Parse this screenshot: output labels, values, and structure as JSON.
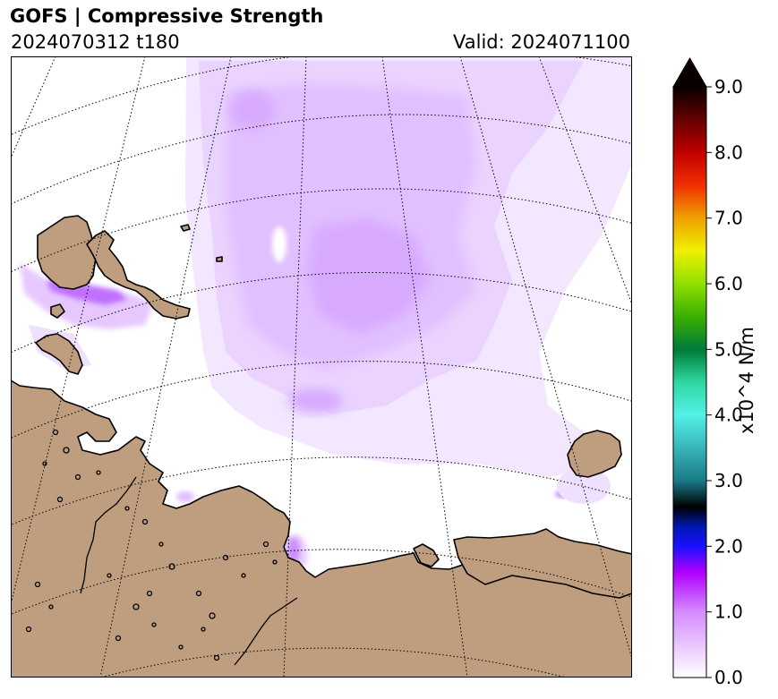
{
  "header": {
    "title": "GOFS  |  Compressive Strength",
    "run": "2024070312 t180",
    "valid": "Valid: 2024071100"
  },
  "colorbar": {
    "min": 0.0,
    "max": 9.0,
    "extend": "max",
    "unit_label": "x10^4 N/m",
    "ticks": [
      "0.0",
      "1.0",
      "2.0",
      "3.0",
      "4.0",
      "5.0",
      "6.0",
      "7.0",
      "8.0",
      "9.0"
    ],
    "tick_values": [
      0,
      1,
      2,
      3,
      4,
      5,
      6,
      7,
      8,
      9
    ],
    "color_stops": [
      {
        "v": 0.0,
        "c": "#ffffff"
      },
      {
        "v": 1.0,
        "c": "#d48cff"
      },
      {
        "v": 1.6,
        "c": "#b000ff"
      },
      {
        "v": 2.0,
        "c": "#1a10ff"
      },
      {
        "v": 2.3,
        "c": "#0018b0"
      },
      {
        "v": 2.6,
        "c": "#000000"
      },
      {
        "v": 3.0,
        "c": "#1a7a88"
      },
      {
        "v": 4.0,
        "c": "#55f0e8"
      },
      {
        "v": 4.5,
        "c": "#2ed8a0"
      },
      {
        "v": 5.0,
        "c": "#007a3a"
      },
      {
        "v": 5.5,
        "c": "#3ab000"
      },
      {
        "v": 6.0,
        "c": "#90e000"
      },
      {
        "v": 6.5,
        "c": "#f0f000"
      },
      {
        "v": 7.0,
        "c": "#f0a000"
      },
      {
        "v": 7.5,
        "c": "#f03000"
      },
      {
        "v": 8.0,
        "c": "#c00000"
      },
      {
        "v": 9.0,
        "c": "#0a0000"
      }
    ]
  },
  "map": {
    "land_color": "#bf9e80",
    "ocean_color": "#ffffff",
    "gridline_style": "dotted",
    "ice_colors": [
      "#f3e6ff",
      "#ead3ff",
      "#e1c0ff",
      "#d3a0ff",
      "#c070ff",
      "#a020f0"
    ]
  }
}
